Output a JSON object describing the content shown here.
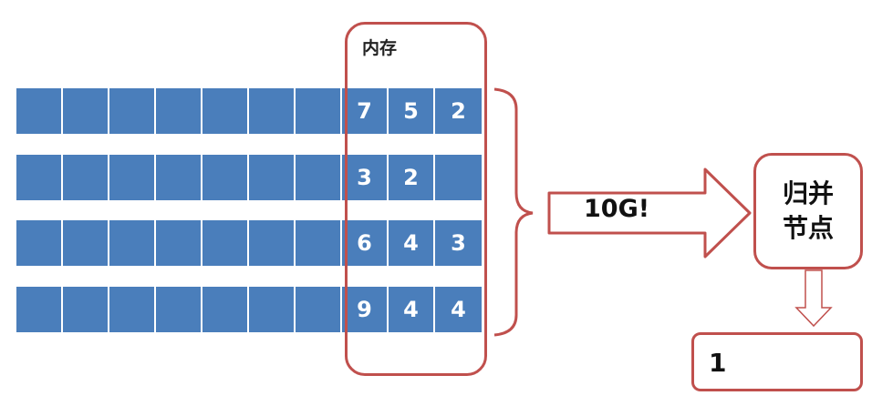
{
  "memory": {
    "label": "内存"
  },
  "arrow": {
    "label": "10G!"
  },
  "merge_node": {
    "label": "归并节点"
  },
  "result": {
    "value": "1"
  },
  "colors": {
    "block": "#4a7ebb",
    "accent": "#c0504d"
  },
  "rows": [
    {
      "values": [
        "",
        "",
        "",
        "",
        "",
        "",
        "",
        "7",
        "5",
        "2"
      ]
    },
    {
      "values": [
        "",
        "",
        "",
        "",
        "",
        "",
        "",
        "3",
        "2",
        ""
      ]
    },
    {
      "values": [
        "",
        "",
        "",
        "",
        "",
        "",
        "",
        "6",
        "4",
        "3"
      ]
    },
    {
      "values": [
        "",
        "",
        "",
        "",
        "",
        "",
        "",
        "9",
        "4",
        "4"
      ]
    }
  ]
}
